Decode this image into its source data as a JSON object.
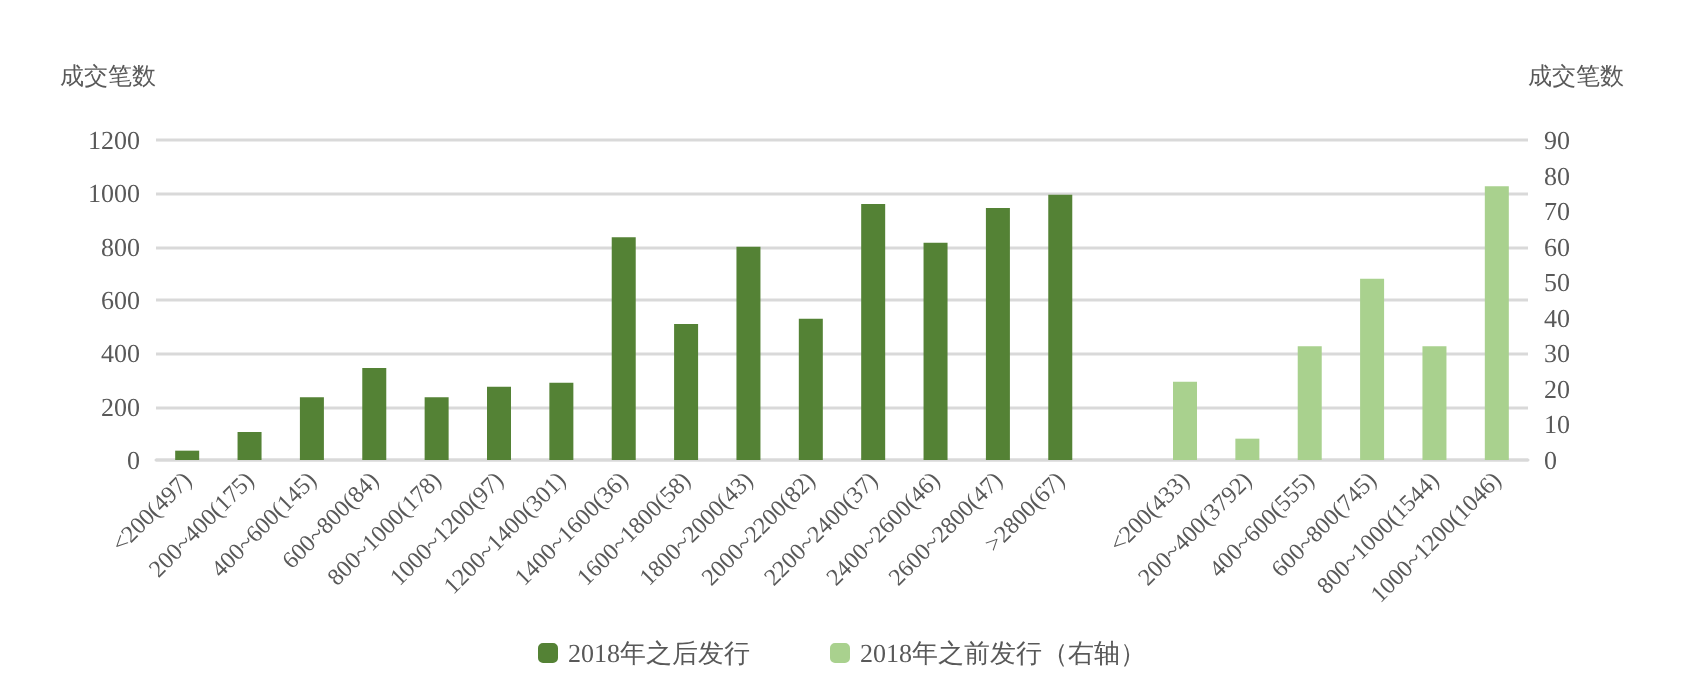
{
  "chart_data": {
    "type": "bar",
    "ylabel": "成交笔数",
    "y2label": "成交笔数",
    "categories": [
      "<200(497)",
      "200~400(175)",
      "400~600(145)",
      "600~800(84)",
      "800~1000(178)",
      "1000~1200(97)",
      "1200~1400(301)",
      "1400~1600(36)",
      "1600~1800(58)",
      "1800~2000(43)",
      "2000~2200(82)",
      "2200~2400(37)",
      "2400~2600(46)",
      "2600~2800(47)",
      ">2800(67)",
      null,
      "<200(433)",
      "200~400(3792)",
      "400~600(555)",
      "600~800(745)",
      "800~1000(1544)",
      "1000~1200(1046)"
    ],
    "series": [
      {
        "name": "2018年之后发行",
        "color": "#548235",
        "values": [
          35,
          105,
          235,
          345,
          235,
          275,
          290,
          835,
          510,
          800,
          530,
          960,
          815,
          945,
          995,
          null,
          null,
          null,
          null,
          null,
          null,
          null
        ]
      },
      {
        "name": "2018年之前发行（右轴）",
        "color": "#a9d18e",
        "axis": "y2",
        "values": [
          null,
          null,
          null,
          null,
          null,
          null,
          null,
          null,
          null,
          null,
          null,
          null,
          null,
          null,
          null,
          null,
          22,
          6,
          32,
          51,
          32,
          77
        ]
      }
    ],
    "ylim": [
      0,
      1200
    ],
    "yticks": [
      0,
      200,
      400,
      600,
      800,
      1000,
      1200
    ],
    "y2lim": [
      0,
      90
    ],
    "y2ticks": [
      0,
      10,
      20,
      30,
      40,
      50,
      60,
      70,
      80,
      90
    ],
    "grid": "y",
    "legend": "bottom"
  }
}
